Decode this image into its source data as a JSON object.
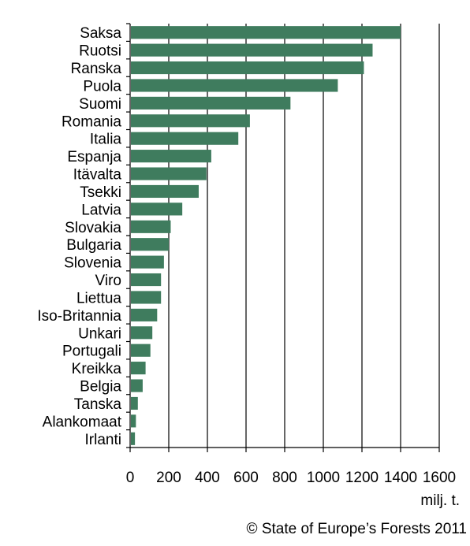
{
  "chart_data": {
    "type": "bar",
    "orientation": "horizontal",
    "categories": [
      "Saksa",
      "Ruotsi",
      "Ranska",
      "Puola",
      "Suomi",
      "Romania",
      "Italia",
      "Espanja",
      "Itävalta",
      "Tsekki",
      "Latvia",
      "Slovakia",
      "Bulgaria",
      "Slovenia",
      "Viro",
      "Liettua",
      "Iso-Britannia",
      "Unkari",
      "Portugali",
      "Kreikka",
      "Belgia",
      "Tanska",
      "Alankomaat",
      "Irlanti"
    ],
    "values": [
      1400,
      1255,
      1210,
      1075,
      830,
      620,
      560,
      420,
      395,
      355,
      270,
      210,
      200,
      175,
      160,
      160,
      140,
      115,
      105,
      80,
      65,
      40,
      30,
      25
    ],
    "xlim": [
      0,
      1600
    ],
    "xticks": [
      0,
      200,
      400,
      600,
      800,
      1000,
      1200,
      1400,
      1600
    ],
    "xlabel": "milj. t.",
    "ylabel": "",
    "title": "",
    "grid": "vertical",
    "bar_color": "#3f7c5e"
  },
  "source": "© State of Europe’s Forests 2011"
}
